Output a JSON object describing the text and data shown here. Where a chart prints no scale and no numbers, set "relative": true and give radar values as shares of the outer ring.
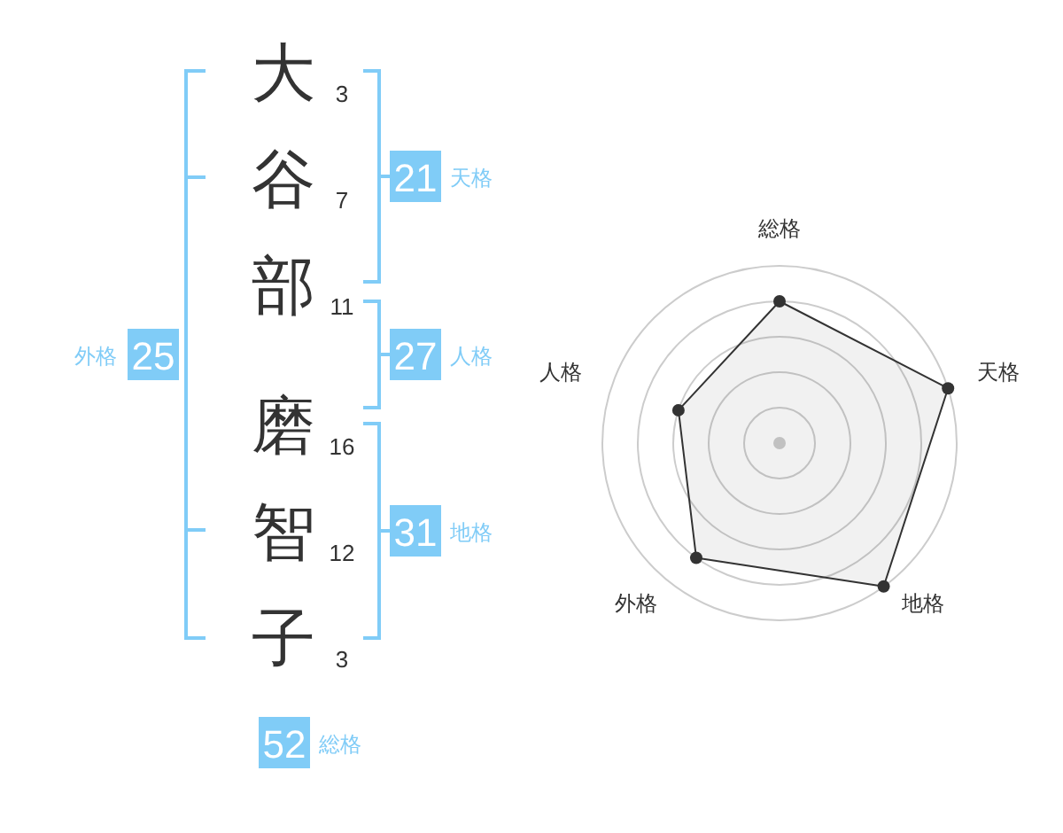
{
  "chart_data": [
    {
      "type": "other",
      "categories": [
        "大",
        "谷",
        "部",
        "磨",
        "智",
        "子"
      ],
      "values": [
        3,
        7,
        11,
        16,
        12,
        3
      ],
      "data_labels": true,
      "color": "#333333"
    },
    {
      "type": "other",
      "categories": [
        "天格",
        "人格",
        "地格",
        "外格",
        "総格"
      ],
      "values": [
        21,
        27,
        31,
        25,
        52
      ],
      "data_labels": true,
      "color": "#80ccf7"
    },
    {
      "type": "radar",
      "categories": [
        "総格",
        "天格",
        "地格",
        "外格",
        "人格"
      ],
      "relative": true,
      "grid": true,
      "marker": "circle",
      "series": [
        {
          "color": "#333333",
          "values": [
            0.8,
            1,
            1,
            0.8,
            0.6
          ]
        }
      ]
    }
  ]
}
